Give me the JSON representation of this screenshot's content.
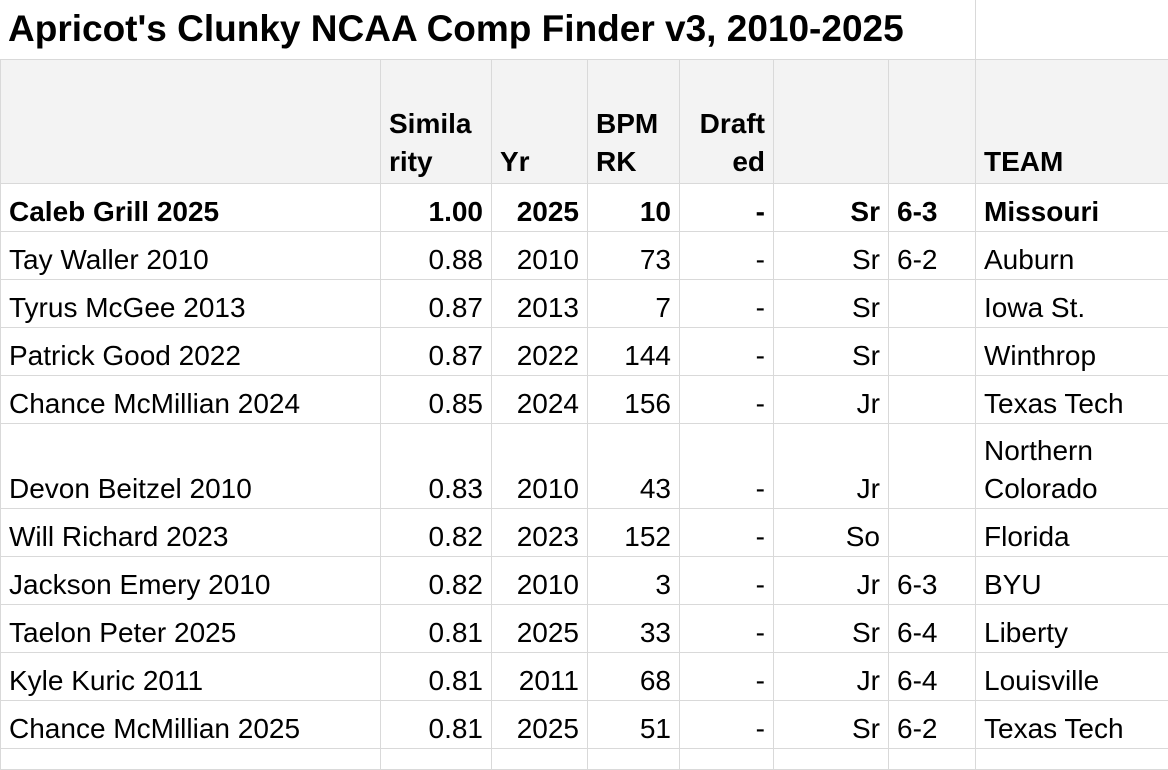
{
  "title": "Apricot's Clunky NCAA Comp Finder v3, 2010-2025",
  "headers": {
    "name": "",
    "similarity": "Simila rity",
    "yr": "Yr",
    "bpm": "BPM RK",
    "drafted": "Draft ed",
    "class": "",
    "height": "",
    "team": "TEAM"
  },
  "rows": [
    {
      "name": "Caleb Grill 2025",
      "sim": "1.00",
      "yr": "2025",
      "bpm": "10",
      "drafted": "-",
      "class": "Sr",
      "height": "6-3",
      "team": "Missouri"
    },
    {
      "name": "Tay Waller 2010",
      "sim": "0.88",
      "yr": "2010",
      "bpm": "73",
      "drafted": "-",
      "class": "Sr",
      "height": "6-2",
      "team": "Auburn"
    },
    {
      "name": "Tyrus McGee 2013",
      "sim": "0.87",
      "yr": "2013",
      "bpm": "7",
      "drafted": "-",
      "class": "Sr",
      "height": "",
      "team": "Iowa St."
    },
    {
      "name": "Patrick Good 2022",
      "sim": "0.87",
      "yr": "2022",
      "bpm": "144",
      "drafted": "-",
      "class": "Sr",
      "height": "",
      "team": "Winthrop"
    },
    {
      "name": "Chance McMillian 2024",
      "sim": "0.85",
      "yr": "2024",
      "bpm": "156",
      "drafted": "-",
      "class": "Jr",
      "height": "",
      "team": "Texas Tech"
    },
    {
      "name": "Devon Beitzel 2010",
      "sim": "0.83",
      "yr": "2010",
      "bpm": "43",
      "drafted": "-",
      "class": "Jr",
      "height": "",
      "team": "Northern Colorado"
    },
    {
      "name": "Will Richard 2023",
      "sim": "0.82",
      "yr": "2023",
      "bpm": "152",
      "drafted": "-",
      "class": "So",
      "height": "",
      "team": "Florida"
    },
    {
      "name": "Jackson Emery 2010",
      "sim": "0.82",
      "yr": "2010",
      "bpm": "3",
      "drafted": "-",
      "class": "Jr",
      "height": "6-3",
      "team": "BYU"
    },
    {
      "name": "Taelon Peter 2025",
      "sim": "0.81",
      "yr": "2025",
      "bpm": "33",
      "drafted": "-",
      "class": "Sr",
      "height": "6-4",
      "team": "Liberty"
    },
    {
      "name": "Kyle Kuric 2011",
      "sim": "0.81",
      "yr": "2011",
      "bpm": "68",
      "drafted": "-",
      "class": "Jr",
      "height": "6-4",
      "team": "Louisville"
    },
    {
      "name": "Chance McMillian 2025",
      "sim": "0.81",
      "yr": "2025",
      "bpm": "51",
      "drafted": "-",
      "class": "Sr",
      "height": "6-2",
      "team": "Texas Tech"
    }
  ]
}
